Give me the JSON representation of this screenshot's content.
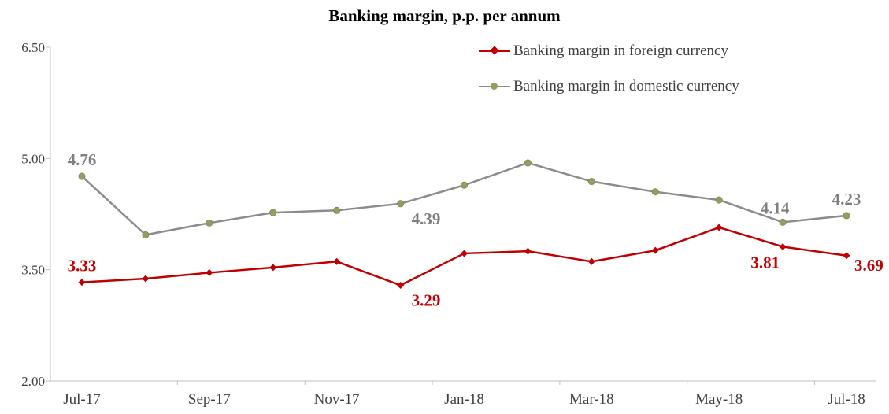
{
  "chart_data": {
    "type": "line",
    "title": "Banking margin, p.p. per annum",
    "xlabel": "",
    "ylabel": "",
    "ylim": [
      2.0,
      6.5
    ],
    "yticks": [
      "2.00",
      "3.50",
      "5.00",
      "6.50"
    ],
    "x": [
      "Jul-17",
      "Aug-17",
      "Sep-17",
      "Oct-17",
      "Nov-17",
      "Dec-17",
      "Jan-18",
      "Feb-18",
      "Mar-18",
      "Apr-18",
      "May-18",
      "Jun-18",
      "Jul-18"
    ],
    "xtick_labels": [
      "Jul-17",
      "",
      "Sep-17",
      "",
      "Nov-17",
      "",
      "Jan-18",
      "",
      "Mar-18",
      "",
      "May-18",
      "",
      "Jul-18"
    ],
    "grid": false,
    "legend_position": "top-right",
    "series": [
      {
        "name": "Banking margin in foreign currency",
        "color": "#c00000",
        "marker": "diamond",
        "values": [
          3.33,
          3.38,
          3.46,
          3.53,
          3.61,
          3.29,
          3.72,
          3.75,
          3.61,
          3.76,
          4.07,
          3.81,
          3.69
        ],
        "labels": [
          {
            "index": 0,
            "text": "3.33",
            "pos": "above"
          },
          {
            "index": 5,
            "text": "3.29",
            "pos": "below-right"
          },
          {
            "index": 11,
            "text": "3.81",
            "pos": "below-left"
          },
          {
            "index": 12,
            "text": "3.69",
            "pos": "right"
          }
        ]
      },
      {
        "name": "Banking margin in domestic currency",
        "color": "#8c8c8c",
        "marker_color": "#8fa060",
        "marker": "circle",
        "values": [
          4.76,
          3.97,
          4.13,
          4.27,
          4.3,
          4.39,
          4.64,
          4.94,
          4.69,
          4.55,
          4.44,
          4.14,
          4.23
        ],
        "labels": [
          {
            "index": 0,
            "text": "4.76",
            "pos": "above"
          },
          {
            "index": 5,
            "text": "4.39",
            "pos": "below-right"
          },
          {
            "index": 11,
            "text": "4.14",
            "pos": "above-left"
          },
          {
            "index": 12,
            "text": "4.23",
            "pos": "above"
          }
        ]
      }
    ]
  }
}
